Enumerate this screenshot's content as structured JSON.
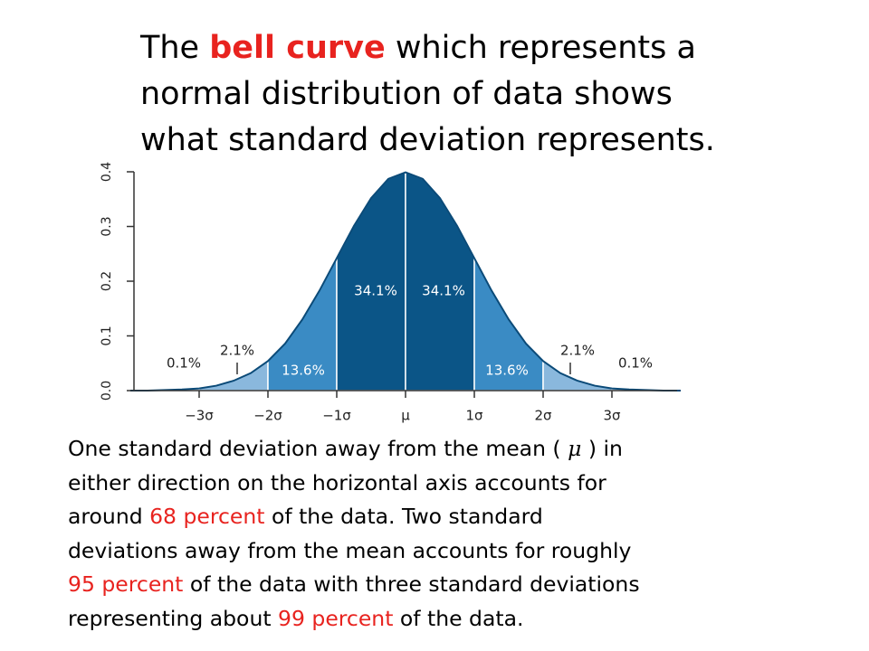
{
  "slide": {
    "title": [
      "The ",
      "bell curve",
      " which represents a",
      "normal distribution of data shows",
      "what standard deviation represents."
    ],
    "body": [
      "One standard deviation away from the mean ( ",
      "μ",
      " ) in",
      "either direction on the horizontal axis accounts for",
      "around ",
      "68 percent",
      " of the data. Two standard",
      "deviations away from the mean accounts for roughly",
      "95 percent",
      " of the data with three standard deviations",
      "representing about ",
      "99 percent",
      " of the data."
    ]
  },
  "chart_data": {
    "type": "area",
    "x": [
      -4,
      -3.75,
      -3.5,
      -3.25,
      -3,
      -2.75,
      -2.5,
      -2.25,
      -2,
      -1.75,
      -1.5,
      -1.25,
      -1,
      -0.75,
      -0.5,
      -0.25,
      0,
      0.25,
      0.5,
      0.75,
      1,
      1.25,
      1.5,
      1.75,
      2,
      2.25,
      2.5,
      2.75,
      3,
      3.25,
      3.5,
      3.75,
      4
    ],
    "values": [
      0.0,
      0.0,
      0.001,
      0.002,
      0.004,
      0.009,
      0.018,
      0.032,
      0.054,
      0.086,
      0.13,
      0.183,
      0.242,
      0.301,
      0.352,
      0.387,
      0.399,
      0.387,
      0.352,
      0.301,
      0.242,
      0.183,
      0.13,
      0.086,
      0.054,
      0.032,
      0.018,
      0.009,
      0.004,
      0.002,
      0.001,
      0.0,
      0.0
    ],
    "color": "#0a4a78",
    "regions": {
      "bounds": [
        -4,
        -3,
        -2,
        -1,
        0,
        1,
        2,
        3,
        4
      ],
      "values": [
        0.1,
        2.1,
        13.6,
        34.1,
        34.1,
        13.6,
        2.1,
        0.1
      ],
      "value_labels": [
        "0.1%",
        "2.1%",
        "13.6%",
        "34.1%",
        "34.1%",
        "13.6%",
        "2.1%",
        "0.1%"
      ],
      "colors": [
        "#d6e6f3",
        "#8ab8dd",
        "#3a8bc4",
        "#0b5587",
        "#0b5587",
        "#3a8bc4",
        "#8ab8dd",
        "#d6e6f3"
      ]
    },
    "xlim": [
      -4,
      4
    ],
    "ylim": [
      0,
      0.4
    ],
    "xticks": [
      {
        "value": -3,
        "label": "−3σ"
      },
      {
        "value": -2,
        "label": "−2σ"
      },
      {
        "value": -1,
        "label": "−1σ"
      },
      {
        "value": 0,
        "label": "μ"
      },
      {
        "value": 1,
        "label": "1σ"
      },
      {
        "value": 2,
        "label": "2σ"
      },
      {
        "value": 3,
        "label": "3σ"
      }
    ],
    "yticks": [
      {
        "value": 0,
        "label": "0.0"
      },
      0.1,
      0.2,
      0.3,
      0.4
    ]
  }
}
